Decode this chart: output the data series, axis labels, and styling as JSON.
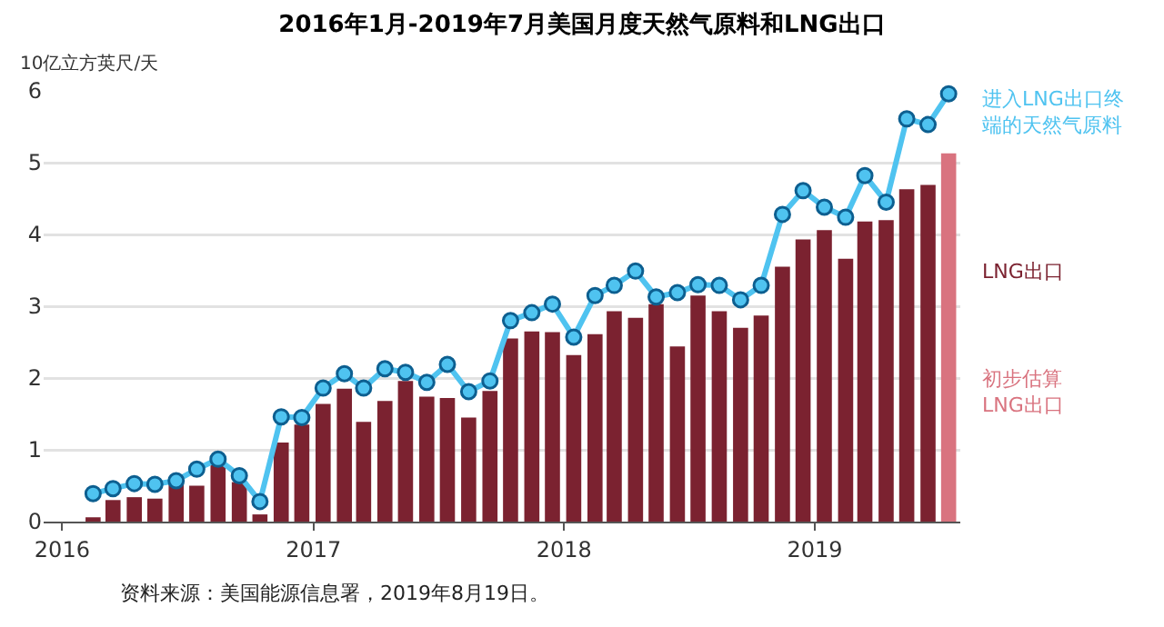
{
  "chart_data": {
    "type": "bar",
    "title": "2016年1月-2019年7月美国月度天然气原料和LNG出口",
    "ylabel": "10亿立方英尺/天",
    "x": [
      "2016-02-15",
      "2016-03-15",
      "2016-04-15",
      "2016-05-15",
      "2016-06-15",
      "2016-07-15",
      "2016-08-15",
      "2016-09-15",
      "2016-10-15",
      "2016-11-15",
      "2016-12-15",
      "2017-01-15",
      "2017-02-15",
      "2017-03-15",
      "2017-04-15",
      "2017-05-15",
      "2017-06-15",
      "2017-07-15",
      "2017-08-15",
      "2017-09-15",
      "2017-10-15",
      "2017-11-15",
      "2017-12-15",
      "2018-01-15",
      "2018-02-15",
      "2018-03-15",
      "2018-04-15",
      "2018-05-15",
      "2018-06-15",
      "2018-07-15",
      "2018-08-15",
      "2018-09-15",
      "2018-10-15",
      "2018-11-15",
      "2018-12-15",
      "2019-01-15",
      "2019-02-15",
      "2019-03-15",
      "2019-04-15",
      "2019-05-15",
      "2019-06-15",
      "2019-07-15"
    ],
    "series": [
      {
        "name": "LNG出口",
        "color": "#7b2230",
        "values": [
          0.06,
          0.3,
          0.34,
          0.32,
          0.6,
          0.5,
          0.8,
          0.55,
          0.1,
          1.1,
          1.35,
          1.64,
          1.85,
          1.39,
          1.68,
          1.96,
          1.74,
          1.72,
          1.45,
          1.82,
          2.55,
          2.65,
          2.64,
          2.32,
          2.61,
          2.93,
          2.84,
          3.03,
          2.44,
          3.15,
          2.93,
          2.7,
          2.87,
          3.55,
          3.93,
          4.06,
          3.66,
          4.18,
          4.2,
          4.63,
          4.69,
          null
        ]
      },
      {
        "name": "初步估算LNG出口",
        "color": "#d9737f",
        "values": [
          null,
          null,
          null,
          null,
          null,
          null,
          null,
          null,
          null,
          null,
          null,
          null,
          null,
          null,
          null,
          null,
          null,
          null,
          null,
          null,
          null,
          null,
          null,
          null,
          null,
          null,
          null,
          null,
          null,
          null,
          null,
          null,
          null,
          null,
          null,
          null,
          null,
          null,
          null,
          null,
          null,
          5.13
        ]
      },
      {
        "name": "进入LNG出口终端的天然气原料",
        "type": "line",
        "color": "#4fc3f0",
        "marker": "circle",
        "values": [
          0.39,
          0.46,
          0.53,
          0.52,
          0.57,
          0.73,
          0.87,
          0.64,
          0.28,
          1.46,
          1.45,
          1.86,
          2.06,
          1.86,
          2.13,
          2.08,
          1.94,
          2.19,
          1.81,
          1.96,
          2.8,
          2.91,
          3.03,
          2.57,
          3.15,
          3.29,
          3.49,
          3.13,
          3.19,
          3.3,
          3.29,
          3.09,
          3.29,
          4.28,
          4.61,
          4.38,
          4.24,
          4.82,
          4.45,
          5.61,
          5.53,
          5.96
        ]
      }
    ],
    "xlim": [
      "2015-12-05",
      "2019-08-01"
    ],
    "xticks": [
      {
        "value": "2016-01",
        "label": "2016"
      },
      {
        "value": "2017-01",
        "label": "2017"
      },
      {
        "value": "2018-01",
        "label": "2018"
      },
      {
        "value": "2019-01",
        "label": "2019"
      }
    ],
    "ylim": [
      0,
      6
    ],
    "yticks": [
      0,
      1,
      2,
      3,
      4,
      5,
      6
    ],
    "grid": "y",
    "legend": false,
    "annotations": [
      "资料来源：美国能源信息署，2019年8月19日。"
    ]
  }
}
